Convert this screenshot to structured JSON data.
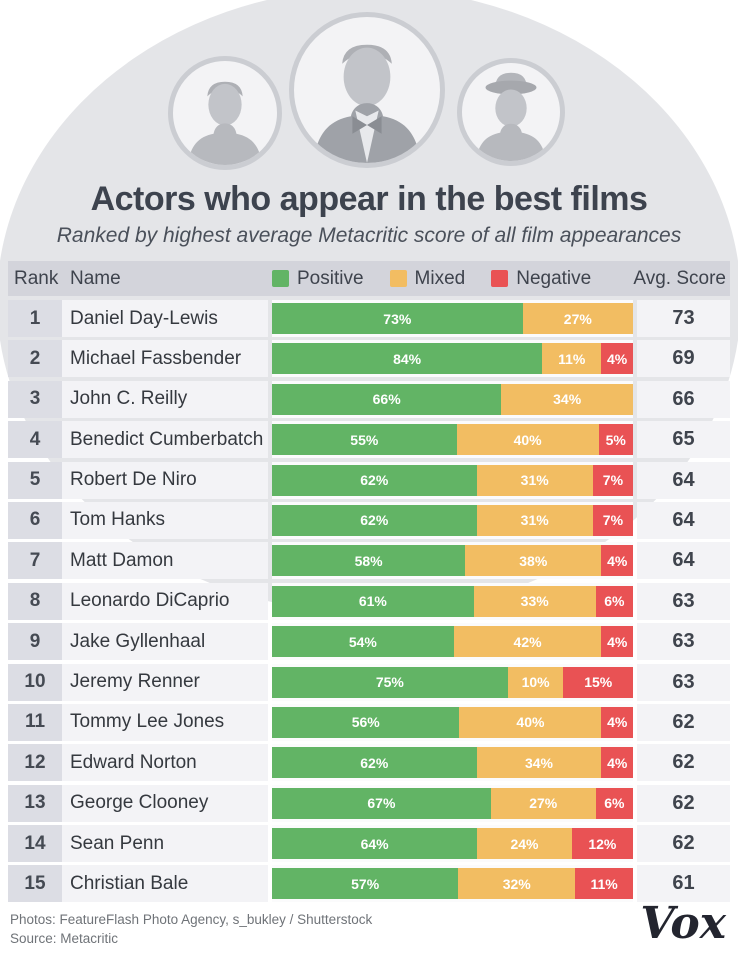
{
  "page": {
    "title": "Actors who appear in the best films",
    "subtitle": "Ranked by highest average Metacritic score of all film appearances"
  },
  "avatars": [
    {
      "name": "Michael Fassbender"
    },
    {
      "name": "Daniel Day-Lewis"
    },
    {
      "name": "John C. Reilly"
    }
  ],
  "table_header": {
    "rank": "Rank",
    "name": "Name",
    "avg_score": "Avg. Score"
  },
  "legend": [
    {
      "label": "Positive",
      "color": "#62b465"
    },
    {
      "label": "Mixed",
      "color": "#f2bd62"
    },
    {
      "label": "Negative",
      "color": "#e95254"
    }
  ],
  "chart_data": {
    "type": "bar",
    "stacked": true,
    "orientation": "horizontal",
    "unit": "%",
    "title": "Actors who appear in the best films",
    "subtitle": "Ranked by highest average Metacritic score of all film appearances",
    "legend_position": "top",
    "ranks": [
      1,
      2,
      3,
      4,
      5,
      6,
      7,
      8,
      9,
      10,
      11,
      12,
      13,
      14,
      15
    ],
    "categories": [
      "Daniel Day-Lewis",
      "Michael Fassbender",
      "John C. Reilly",
      "Benedict Cumberbatch",
      "Robert De Niro",
      "Tom Hanks",
      "Matt Damon",
      "Leonardo DiCaprio",
      "Jake Gyllenhaal",
      "Jeremy Renner",
      "Tommy Lee Jones",
      "Edward Norton",
      "George Clooney",
      "Sean Penn",
      "Christian Bale"
    ],
    "series": [
      {
        "name": "Positive",
        "color": "#62b465",
        "values": [
          73,
          84,
          66,
          55,
          62,
          62,
          58,
          61,
          54,
          75,
          56,
          62,
          67,
          64,
          57
        ]
      },
      {
        "name": "Mixed",
        "color": "#f2bd62",
        "values": [
          27,
          11,
          34,
          40,
          31,
          31,
          38,
          33,
          42,
          10,
          40,
          34,
          27,
          24,
          32
        ]
      },
      {
        "name": "Negative",
        "color": "#e95254",
        "values": [
          0,
          4,
          0,
          5,
          7,
          7,
          4,
          6,
          4,
          15,
          4,
          4,
          6,
          12,
          11
        ]
      }
    ],
    "avg_scores": [
      73,
      69,
      66,
      65,
      64,
      64,
      64,
      63,
      63,
      63,
      62,
      62,
      62,
      62,
      61
    ]
  },
  "footer": {
    "credits": "Photos: FeatureFlash Photo Agency, s_bukley / Shutterstock",
    "source": "Source: Metacritic",
    "logo": "Vox"
  }
}
